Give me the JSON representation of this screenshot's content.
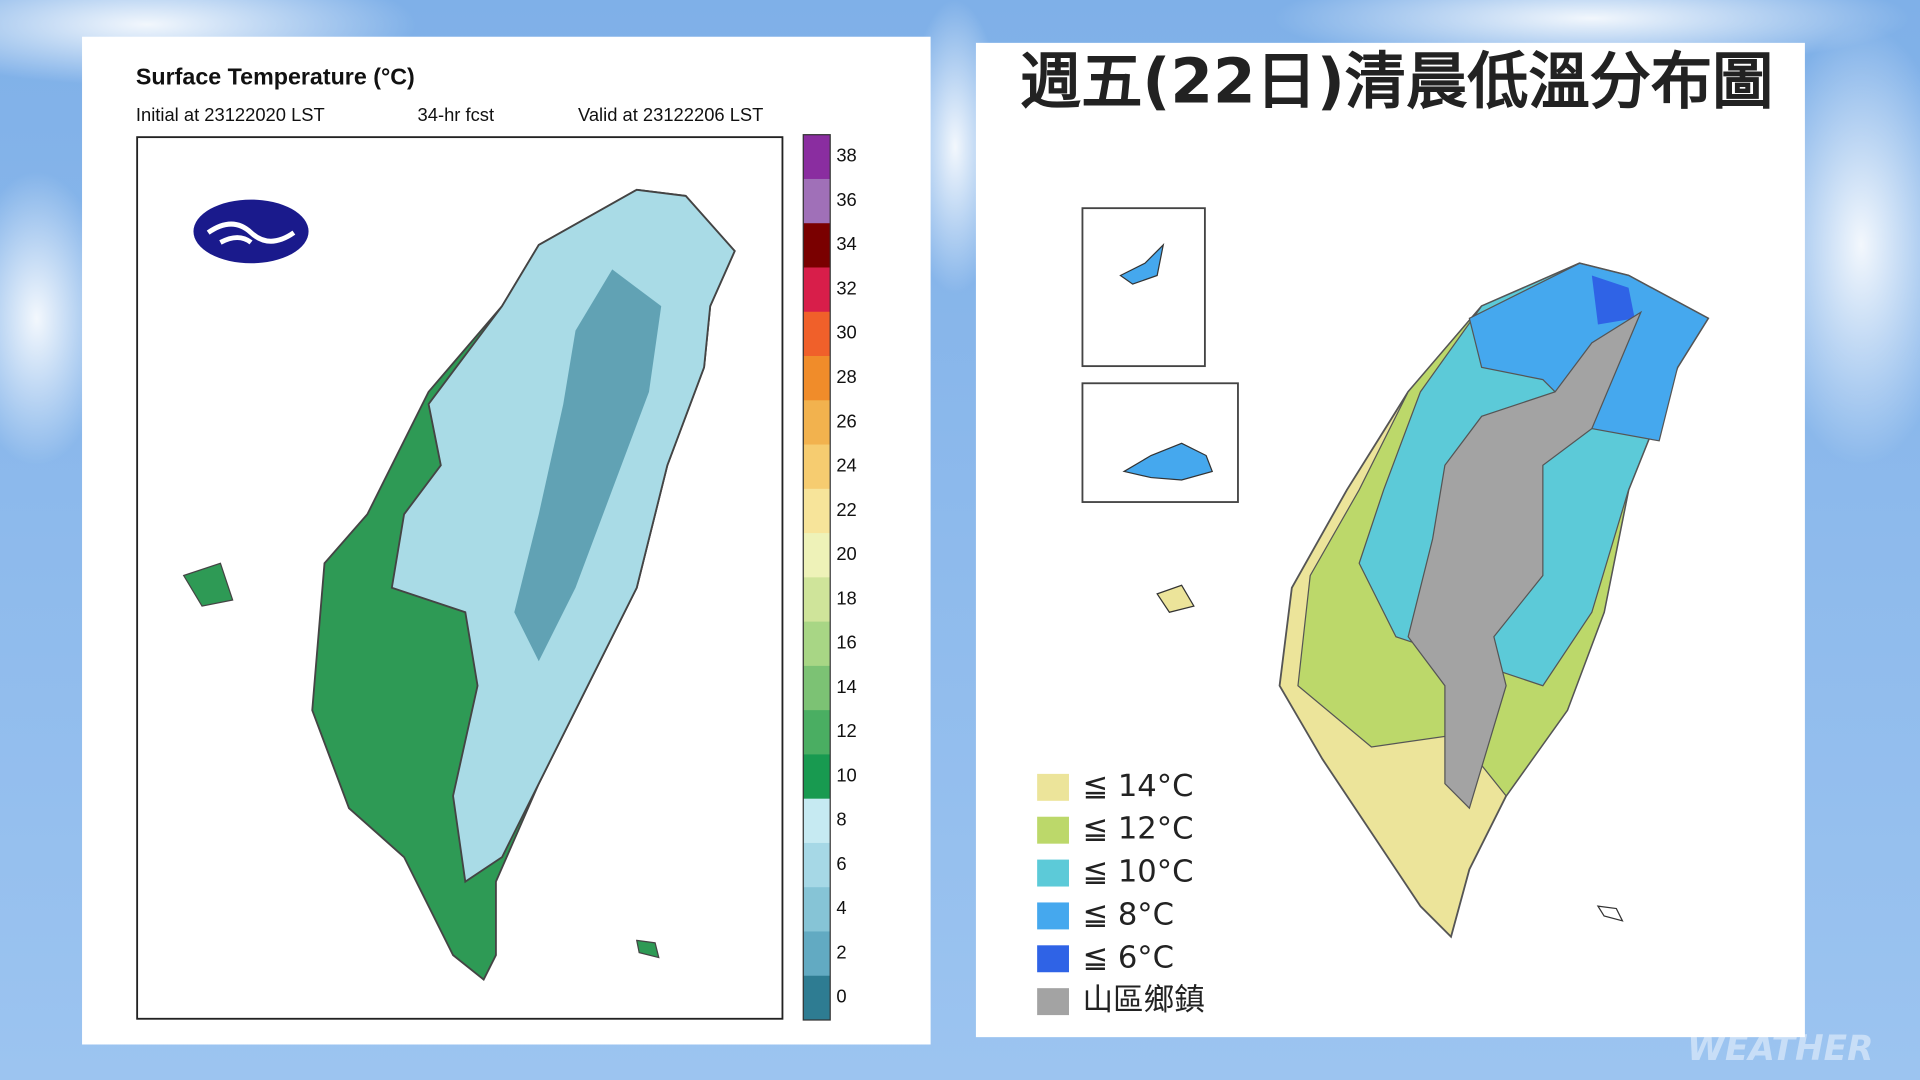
{
  "left_panel": {
    "title": "Surface Temperature (°C)",
    "initial": "Initial at 23122020 LST",
    "forecast": "34-hr fcst",
    "valid": "Valid at 23122206 LST",
    "colorbar": {
      "labels": [
        38,
        36,
        34,
        32,
        30,
        28,
        26,
        24,
        22,
        20,
        18,
        16,
        14,
        12,
        10,
        8,
        6,
        4,
        2,
        0
      ],
      "colors": [
        "#8a2da0",
        "#a070b8",
        "#7a0000",
        "#d81e4a",
        "#f0602a",
        "#f08c2a",
        "#f2b24e",
        "#f6cc70",
        "#f7e49a",
        "#eef2b8",
        "#cfe49a",
        "#a8d685",
        "#7cc274",
        "#4aae62",
        "#189a50",
        "#c6eaf2",
        "#a6d8e6",
        "#86c4d6",
        "#62aac2",
        "#2e7c92"
      ]
    }
  },
  "right_panel": {
    "title": "週五(22日)清晨低溫分布圖",
    "legend": [
      {
        "label": "≦ 14°C",
        "color": "#ece49a"
      },
      {
        "label": "≦ 12°C",
        "color": "#bcd86a"
      },
      {
        "label": "≦ 10°C",
        "color": "#5ccad8"
      },
      {
        "label": "≦ 8°C",
        "color": "#45a8ee"
      },
      {
        "label": "≦ 6°C",
        "color": "#2f63e6"
      },
      {
        "label": "山區鄉鎮",
        "color": "#a3a3a3"
      }
    ]
  },
  "watermark": "WEATHER"
}
